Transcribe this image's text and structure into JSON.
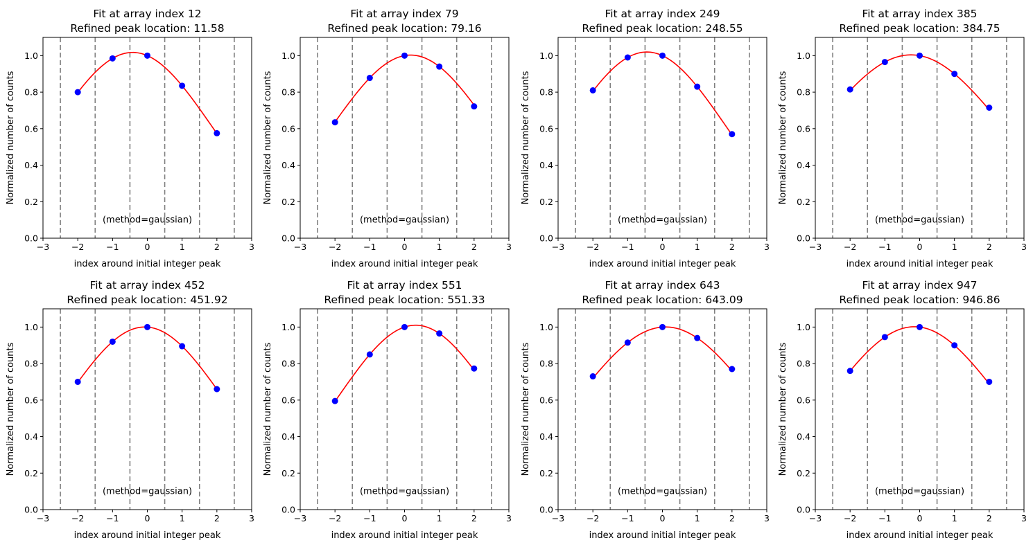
{
  "figure": {
    "shared": {
      "xlabel": "index around initial integer peak",
      "ylabel": "Normalized number of counts",
      "annotation": "(method=gaussian)",
      "xlim": [
        -3,
        3
      ],
      "ylim": [
        0,
        1.1
      ],
      "xticks": [
        -3,
        -2,
        -1,
        0,
        1,
        2,
        3
      ],
      "xtick_labels": [
        "−3",
        "−2",
        "−1",
        "0",
        "1",
        "2",
        "3"
      ],
      "yticks": [
        0,
        0.2,
        0.4,
        0.6,
        0.8,
        1.0
      ],
      "ytick_labels": [
        "0.0",
        "0.2",
        "0.4",
        "0.6",
        "0.8",
        "1.0"
      ],
      "vlines": [
        -2.5,
        -1.5,
        -0.5,
        0.5,
        1.5,
        2.5
      ],
      "colors": {
        "points": "#0000ff",
        "fit": "#ff0000",
        "vlines": "#808080"
      }
    }
  },
  "chart_data": [
    {
      "type": "scatter",
      "title": "Fit at array index 12",
      "subtitle": "Refined peak location: 11.58",
      "xlabel": "index around initial integer peak",
      "ylabel": "Normalized number of counts",
      "x": [
        -2,
        -1,
        0,
        1,
        2
      ],
      "y": [
        0.8,
        0.985,
        1.0,
        0.835,
        0.575
      ],
      "fit": {
        "type": "gaussian",
        "center": -0.42,
        "amplitude": 1.018
      }
    },
    {
      "type": "scatter",
      "title": "Fit at array index 79",
      "subtitle": "Refined peak location: 79.16",
      "xlabel": "index around initial integer peak",
      "ylabel": "Normalized number of counts",
      "x": [
        -2,
        -1,
        0,
        1,
        2
      ],
      "y": [
        0.635,
        0.878,
        1.0,
        0.94,
        0.722
      ],
      "fit": {
        "type": "gaussian",
        "center": 0.16,
        "amplitude": 1.005
      }
    },
    {
      "type": "scatter",
      "title": "Fit at array index 249",
      "subtitle": "Refined peak location: 248.55",
      "xlabel": "index around initial integer peak",
      "ylabel": "Normalized number of counts",
      "x": [
        -2,
        -1,
        0,
        1,
        2
      ],
      "y": [
        0.81,
        0.99,
        1.0,
        0.83,
        0.57
      ],
      "fit": {
        "type": "gaussian",
        "center": -0.45,
        "amplitude": 1.02
      }
    },
    {
      "type": "scatter",
      "title": "Fit at array index 385",
      "subtitle": "Refined peak location: 384.75",
      "xlabel": "index around initial integer peak",
      "ylabel": "Normalized number of counts",
      "x": [
        -2,
        -1,
        0,
        1,
        2
      ],
      "y": [
        0.815,
        0.965,
        1.0,
        0.9,
        0.715
      ],
      "fit": {
        "type": "gaussian",
        "center": -0.25,
        "amplitude": 1.004
      }
    },
    {
      "type": "scatter",
      "title": "Fit at array index 452",
      "subtitle": "Refined peak location: 451.92",
      "xlabel": "index around initial integer peak",
      "ylabel": "Normalized number of counts",
      "x": [
        -2,
        -1,
        0,
        1,
        2
      ],
      "y": [
        0.7,
        0.92,
        1.0,
        0.895,
        0.66
      ],
      "fit": {
        "type": "gaussian",
        "center": -0.08,
        "amplitude": 1.003
      }
    },
    {
      "type": "scatter",
      "title": "Fit at array index 551",
      "subtitle": "Refined peak location: 551.33",
      "xlabel": "index around initial integer peak",
      "ylabel": "Normalized number of counts",
      "x": [
        -2,
        -1,
        0,
        1,
        2
      ],
      "y": [
        0.595,
        0.85,
        1.0,
        0.965,
        0.773
      ],
      "fit": {
        "type": "gaussian",
        "center": 0.33,
        "amplitude": 1.012
      }
    },
    {
      "type": "scatter",
      "title": "Fit at array index 643",
      "subtitle": "Refined peak location: 643.09",
      "xlabel": "index around initial integer peak",
      "ylabel": "Normalized number of counts",
      "x": [
        -2,
        -1,
        0,
        1,
        2
      ],
      "y": [
        0.73,
        0.915,
        1.0,
        0.94,
        0.77
      ],
      "fit": {
        "type": "gaussian",
        "center": 0.09,
        "amplitude": 1.001
      }
    },
    {
      "type": "scatter",
      "title": "Fit at array index 947",
      "subtitle": "Refined peak location: 946.86",
      "xlabel": "index around initial integer peak",
      "ylabel": "Normalized number of counts",
      "x": [
        -2,
        -1,
        0,
        1,
        2
      ],
      "y": [
        0.76,
        0.945,
        1.0,
        0.9,
        0.7
      ],
      "fit": {
        "type": "gaussian",
        "center": -0.14,
        "amplitude": 1.002
      }
    }
  ]
}
